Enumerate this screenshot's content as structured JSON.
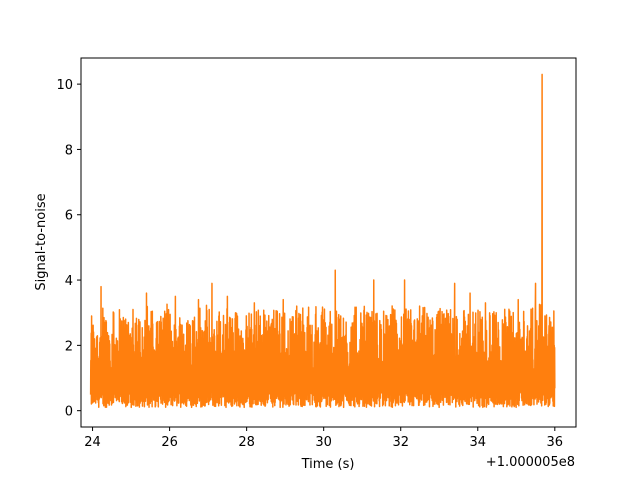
{
  "chart_data": {
    "type": "line",
    "title": "",
    "xlabel": "Time (s)",
    "ylabel": "Signal-to-noise",
    "x_offset_label": "+1.000005e8",
    "xlim": [
      23.7,
      36.55
    ],
    "ylim": [
      -0.5,
      10.8
    ],
    "xticks": [
      24,
      26,
      28,
      30,
      32,
      34,
      36
    ],
    "xtick_labels": [
      "24",
      "26",
      "28",
      "30",
      "32",
      "34",
      "36"
    ],
    "yticks": [
      0,
      2,
      4,
      6,
      8,
      10
    ],
    "ytick_labels": [
      "0",
      "2",
      "4",
      "6",
      "8",
      "10"
    ],
    "grid": false,
    "series": [
      {
        "color": "#ff7f0e",
        "x_range": [
          23.95,
          36.0
        ],
        "baseline_min": 0.1,
        "typical_max": 3.0,
        "peaks": [
          {
            "x": 24.05,
            "y": 2.2
          },
          {
            "x": 24.22,
            "y": 3.8
          },
          {
            "x": 24.55,
            "y": 3.0
          },
          {
            "x": 25.05,
            "y": 3.1
          },
          {
            "x": 25.4,
            "y": 3.6
          },
          {
            "x": 26.15,
            "y": 3.5
          },
          {
            "x": 26.75,
            "y": 3.4
          },
          {
            "x": 27.1,
            "y": 3.9
          },
          {
            "x": 27.5,
            "y": 3.5
          },
          {
            "x": 28.2,
            "y": 3.3
          },
          {
            "x": 28.95,
            "y": 3.4
          },
          {
            "x": 29.3,
            "y": 3.2
          },
          {
            "x": 30.3,
            "y": 4.3
          },
          {
            "x": 31.3,
            "y": 4.0
          },
          {
            "x": 32.1,
            "y": 4.0
          },
          {
            "x": 33.4,
            "y": 3.9
          },
          {
            "x": 33.8,
            "y": 3.6
          },
          {
            "x": 34.2,
            "y": 3.3
          },
          {
            "x": 35.05,
            "y": 3.4
          },
          {
            "x": 35.5,
            "y": 3.9
          },
          {
            "x": 35.67,
            "y": 10.3
          },
          {
            "x": 35.85,
            "y": 2.6
          }
        ]
      }
    ]
  }
}
